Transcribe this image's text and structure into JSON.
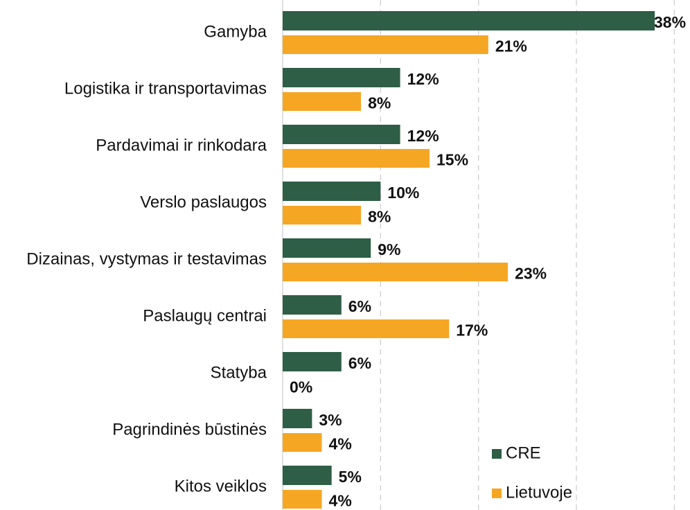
{
  "chart_data": {
    "type": "bar",
    "orientation": "horizontal",
    "categories": [
      "Gamyba",
      "Logistika ir transportavimas",
      "Pardavimai ir rinkodara",
      "Verslo paslaugos",
      "Dizainas, vystymas ir testavimas",
      "Paslaugų centrai",
      "Statyba",
      "Pagrindinės būstinės",
      "Kitos veiklos"
    ],
    "series": [
      {
        "name": "CRE",
        "color": "#2e5e45",
        "values": [
          38,
          12,
          12,
          10,
          9,
          6,
          6,
          3,
          5
        ],
        "value_labels": [
          "38%",
          "12%",
          "12%",
          "10%",
          "9%",
          "6%",
          "6%",
          "3%",
          "5%"
        ]
      },
      {
        "name": "Lietuvoje",
        "color": "#f5a623",
        "values": [
          21,
          8,
          15,
          8,
          23,
          17,
          0,
          4,
          4
        ],
        "value_labels": [
          "21%",
          "8%",
          "15%",
          "8%",
          "23%",
          "17%",
          "0%",
          "4%",
          "4%"
        ]
      }
    ],
    "xlim": [
      0,
      41.6
    ],
    "xticks": [
      0,
      10,
      20,
      30,
      40
    ],
    "grid": true,
    "legend": "lower right"
  }
}
